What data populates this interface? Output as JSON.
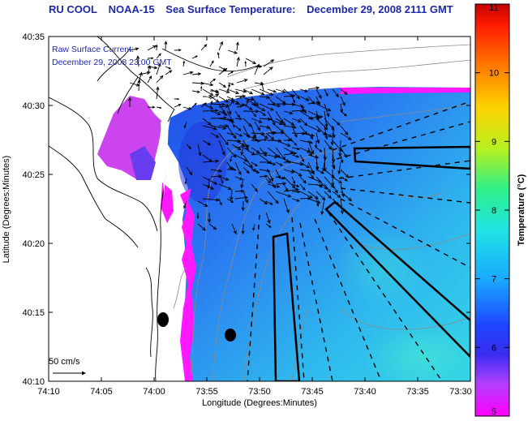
{
  "title": {
    "org": "RU COOL",
    "satellite": "NOAA-15",
    "product": "Sea Surface Temperature:",
    "date": "December 29, 2008 2111 GMT"
  },
  "overlay": {
    "line1": "Raw Surface Current:",
    "line2": "December 29, 2008 23:00 GMT"
  },
  "scale_label": "50 cm/s",
  "axes": {
    "xlabel": "Longitude (Degrees:Minutes)",
    "ylabel": "Latitude (Degrees:Minutes)",
    "xticks": [
      "74:10",
      "74:05",
      "74:00",
      "73:55",
      "73:50",
      "73:45",
      "73:40",
      "73:35",
      "73:30"
    ],
    "yticks": [
      "40:10",
      "40:15",
      "40:20",
      "40:25",
      "40:30",
      "40:35"
    ]
  },
  "colorbar": {
    "label": "Temperature (°C)",
    "min": 5,
    "max": 11,
    "ticks": [
      "5",
      "6",
      "7",
      "8",
      "9",
      "10",
      "11"
    ]
  },
  "colors": {
    "title_blue": "#1c2aa6",
    "land": "#ffffff",
    "cold": "#ff00ff",
    "water_mid": "#2a70f2",
    "water_warm": "#28c8ee"
  }
}
